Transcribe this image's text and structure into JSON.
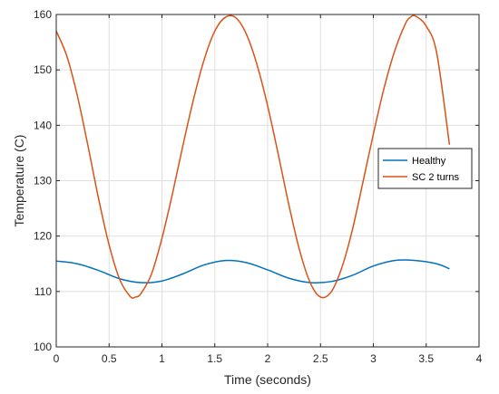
{
  "chart_data": {
    "type": "line",
    "title": "",
    "xlabel": "Time (seconds)",
    "ylabel": "Temperature (C)",
    "xlim": [
      0,
      4
    ],
    "ylim": [
      100,
      160
    ],
    "x_ticks": [
      0,
      0.5,
      1,
      1.5,
      2,
      2.5,
      3,
      3.5,
      4
    ],
    "x_tick_labels": [
      "0",
      "0.5",
      "1",
      "1.5",
      "2",
      "2.5",
      "3",
      "3.5",
      "4"
    ],
    "y_ticks": [
      100,
      110,
      120,
      130,
      140,
      150,
      160
    ],
    "y_tick_labels": [
      "100",
      "110",
      "120",
      "130",
      "140",
      "150",
      "160"
    ],
    "grid": true,
    "legend_position": "right",
    "series": [
      {
        "name": "Healthy",
        "color": "#0072BD",
        "x": [
          0,
          0.2,
          0.4,
          0.6,
          0.8,
          1.0,
          1.2,
          1.4,
          1.6,
          1.8,
          2.0,
          2.2,
          2.4,
          2.6,
          2.8,
          3.0,
          3.2,
          3.4,
          3.6,
          3.72
        ],
        "y": [
          115.5,
          115.0,
          113.8,
          112.3,
          111.6,
          111.9,
          113.2,
          114.8,
          115.6,
          115.2,
          113.9,
          112.4,
          111.6,
          111.8,
          112.9,
          114.6,
          115.6,
          115.6,
          115.0,
          114.1
        ]
      },
      {
        "name": "SC 2 turns",
        "color": "#D95319",
        "x": [
          0,
          0.1,
          0.2,
          0.3,
          0.4,
          0.5,
          0.6,
          0.7,
          0.75,
          0.8,
          0.9,
          1.0,
          1.1,
          1.2,
          1.3,
          1.4,
          1.5,
          1.6,
          1.7,
          1.8,
          1.9,
          2.0,
          2.1,
          2.2,
          2.3,
          2.4,
          2.5,
          2.6,
          2.7,
          2.8,
          2.9,
          3.0,
          3.1,
          3.2,
          3.3,
          3.35,
          3.4,
          3.5,
          3.6,
          3.72
        ],
        "y": [
          157.0,
          152.5,
          145.3,
          136.3,
          126.8,
          118.4,
          112.2,
          109.1,
          109.0,
          109.6,
          113.1,
          119.6,
          127.7,
          136.5,
          144.8,
          151.9,
          157.0,
          159.5,
          159.4,
          156.4,
          150.9,
          143.5,
          134.8,
          125.7,
          117.6,
          111.7,
          109.0,
          109.9,
          114.2,
          121.0,
          129.6,
          138.4,
          146.6,
          153.3,
          158.2,
          159.5,
          159.7,
          157.9,
          153.0,
          136.5
        ]
      }
    ]
  }
}
